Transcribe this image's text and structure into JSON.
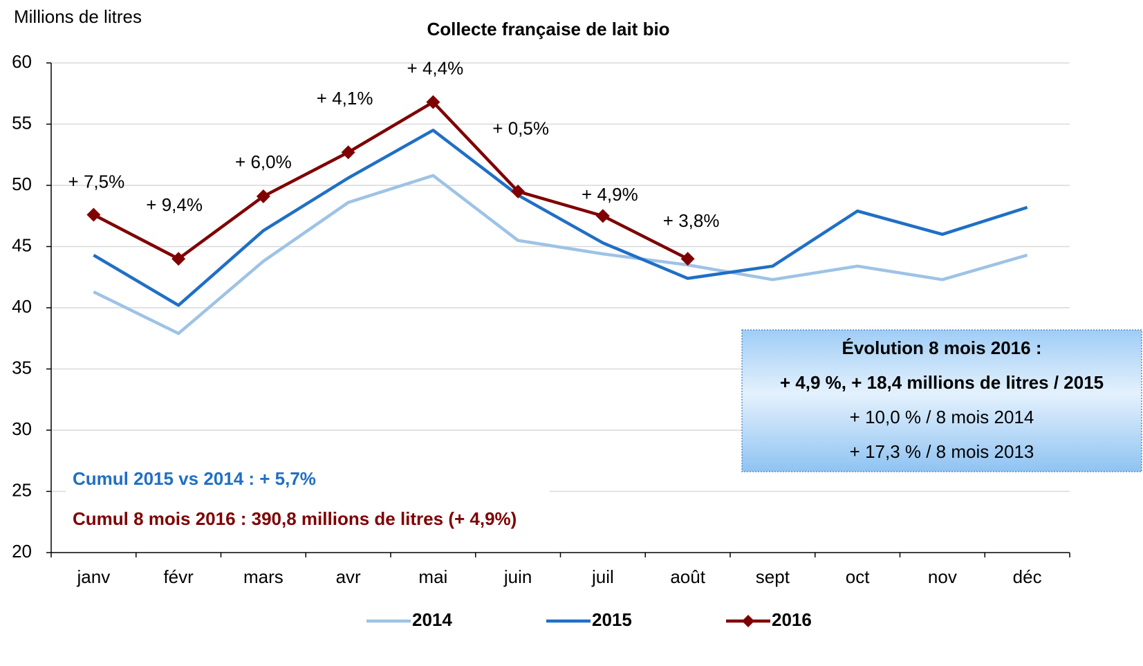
{
  "chart_data": {
    "type": "line",
    "title": "Collecte française de lait bio",
    "y_axis_label": "Millions de litres",
    "categories": [
      "janv",
      "févr",
      "mars",
      "avr",
      "mai",
      "juin",
      "juil",
      "août",
      "sept",
      "oct",
      "nov",
      "déc"
    ],
    "series": [
      {
        "name": "2014",
        "color": "#9dc3e6",
        "values": [
          41.3,
          37.9,
          43.8,
          48.6,
          50.8,
          45.5,
          44.4,
          43.5,
          42.3,
          43.4,
          42.3,
          44.3
        ]
      },
      {
        "name": "2015",
        "color": "#1f6fc5",
        "values": [
          44.3,
          40.2,
          46.3,
          50.6,
          54.5,
          49.2,
          45.3,
          42.4,
          43.4,
          47.9,
          46.0,
          48.2
        ]
      },
      {
        "name": "2016",
        "color": "#7f0000",
        "marker": "diamond",
        "values": [
          47.6,
          44.0,
          49.1,
          52.7,
          56.8,
          49.5,
          47.5,
          44.0,
          null,
          null,
          null,
          null
        ]
      }
    ],
    "annotations": [
      "+ 7,5%",
      "+ 9,4%",
      "+ 6,0%",
      "+ 4,1%",
      "+ 4,4%",
      "+ 0,5%",
      "+ 4,9%",
      "+ 3,8%"
    ],
    "ylim": [
      20,
      60
    ],
    "yticks": [
      20,
      25,
      30,
      35,
      40,
      45,
      50,
      55,
      60
    ],
    "grid": true,
    "legend": "bottom",
    "cumul_2015": "Cumul 2015 vs 2014 : + 5,7%",
    "cumul_2016": "Cumul 8 mois 2016 : 390,8 millions de litres (+ 4,9%)",
    "box": {
      "title": "Évolution 8 mois 2016 :",
      "lines": [
        "+ 4,9 %, + 18,4 millions de litres / 2015",
        "+ 10,0 % / 8 mois 2014",
        "+ 17,3 % / 8 mois 2013"
      ]
    }
  }
}
